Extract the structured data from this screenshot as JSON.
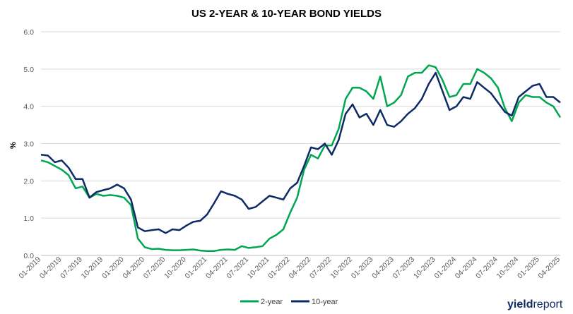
{
  "chart_data": {
    "type": "line",
    "title": "US 2-YEAR & 10-YEAR BOND YIELDS",
    "xlabel": "",
    "ylabel": "%",
    "ylim": [
      0,
      6
    ],
    "yticks": [
      "0.0",
      "1.0",
      "2.0",
      "3.0",
      "4.0",
      "5.0",
      "6.0"
    ],
    "xticks": [
      "01-2019",
      "04-2019",
      "07-2019",
      "10-2019",
      "01-2020",
      "04-2020",
      "07-2020",
      "10-2020",
      "01-2021",
      "04-2021",
      "07-2021",
      "10-2021",
      "01-2022",
      "04-2022",
      "07-2022",
      "10-2022",
      "01-2023",
      "04-2023",
      "07-2023",
      "10-2023",
      "01-2024",
      "04-2024",
      "07-2024",
      "10-2024",
      "01-2025",
      "04-2025"
    ],
    "xrange": [
      "2019-01",
      "2025-04"
    ],
    "grid": "horizontal",
    "legend_position": "bottom",
    "x": [
      "2019-01",
      "2019-02",
      "2019-03",
      "2019-04",
      "2019-05",
      "2019-06",
      "2019-07",
      "2019-08",
      "2019-09",
      "2019-10",
      "2019-11",
      "2019-12",
      "2020-01",
      "2020-02",
      "2020-03",
      "2020-04",
      "2020-05",
      "2020-06",
      "2020-07",
      "2020-08",
      "2020-09",
      "2020-10",
      "2020-11",
      "2020-12",
      "2021-01",
      "2021-02",
      "2021-03",
      "2021-04",
      "2021-05",
      "2021-06",
      "2021-07",
      "2021-08",
      "2021-09",
      "2021-10",
      "2021-11",
      "2021-12",
      "2022-01",
      "2022-02",
      "2022-03",
      "2022-04",
      "2022-05",
      "2022-06",
      "2022-07",
      "2022-08",
      "2022-09",
      "2022-10",
      "2022-11",
      "2022-12",
      "2023-01",
      "2023-02",
      "2023-03",
      "2023-04",
      "2023-05",
      "2023-06",
      "2023-07",
      "2023-08",
      "2023-09",
      "2023-10",
      "2023-11",
      "2023-12",
      "2024-01",
      "2024-02",
      "2024-03",
      "2024-04",
      "2024-05",
      "2024-06",
      "2024-07",
      "2024-08",
      "2024-09",
      "2024-10",
      "2024-11",
      "2024-12",
      "2025-01",
      "2025-02",
      "2025-03",
      "2025-04"
    ],
    "series": [
      {
        "name": "2-year",
        "color": "#00a651",
        "values": [
          2.55,
          2.5,
          2.4,
          2.3,
          2.15,
          1.8,
          1.85,
          1.55,
          1.65,
          1.6,
          1.62,
          1.6,
          1.55,
          1.35,
          0.45,
          0.22,
          0.17,
          0.18,
          0.15,
          0.14,
          0.14,
          0.15,
          0.16,
          0.13,
          0.12,
          0.12,
          0.15,
          0.16,
          0.15,
          0.25,
          0.2,
          0.22,
          0.25,
          0.45,
          0.55,
          0.7,
          1.15,
          1.55,
          2.3,
          2.7,
          2.6,
          2.95,
          2.95,
          3.4,
          4.2,
          4.5,
          4.5,
          4.4,
          4.2,
          4.8,
          4.0,
          4.1,
          4.3,
          4.8,
          4.9,
          4.9,
          5.1,
          5.05,
          4.7,
          4.25,
          4.3,
          4.6,
          4.6,
          5.0,
          4.9,
          4.75,
          4.5,
          3.95,
          3.6,
          4.1,
          4.3,
          4.25,
          4.25,
          4.1,
          4.0,
          3.7
        ]
      },
      {
        "name": "10-year",
        "color": "#0d2a66",
        "values": [
          2.7,
          2.68,
          2.5,
          2.55,
          2.35,
          2.05,
          2.05,
          1.55,
          1.7,
          1.75,
          1.8,
          1.9,
          1.8,
          1.5,
          0.75,
          0.65,
          0.68,
          0.7,
          0.6,
          0.7,
          0.68,
          0.8,
          0.9,
          0.93,
          1.1,
          1.4,
          1.72,
          1.65,
          1.6,
          1.5,
          1.25,
          1.3,
          1.45,
          1.6,
          1.55,
          1.5,
          1.8,
          1.95,
          2.4,
          2.9,
          2.85,
          3.0,
          2.7,
          3.1,
          3.8,
          4.05,
          3.7,
          3.8,
          3.5,
          3.9,
          3.5,
          3.45,
          3.6,
          3.8,
          3.95,
          4.2,
          4.6,
          4.9,
          4.4,
          3.9,
          4.0,
          4.25,
          4.2,
          4.65,
          4.5,
          4.35,
          4.1,
          3.85,
          3.75,
          4.25,
          4.4,
          4.55,
          4.6,
          4.25,
          4.25,
          4.1
        ]
      }
    ]
  },
  "legend": {
    "series1_label": "2-year",
    "series2_label": "10-year"
  },
  "brand": {
    "part1": "yield",
    "part2": "report"
  },
  "colors": {
    "accent_green": "#00a651",
    "navy": "#0d2a66",
    "grid": "#d9d9d9",
    "axis_text": "#595959"
  }
}
